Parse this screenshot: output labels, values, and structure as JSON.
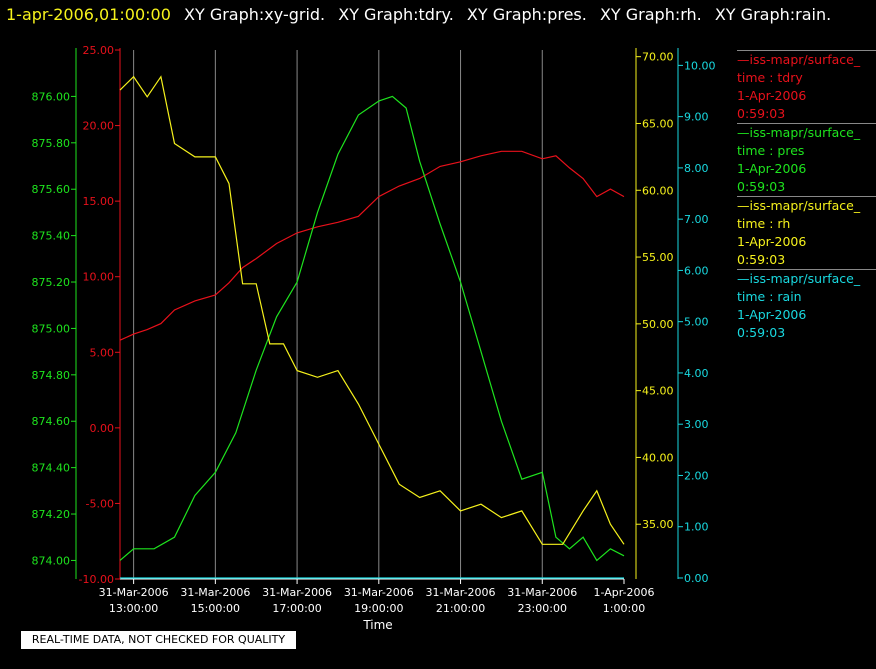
{
  "title": {
    "timestamp": "1-apr-2006,01:00:00",
    "graphs": [
      "XY Graph:xy-grid.",
      "XY Graph:tdry.",
      "XY Graph:pres.",
      "XY Graph:rh.",
      "XY Graph:rain."
    ]
  },
  "colors": {
    "background": "#000000",
    "grid": "#888888",
    "tdry": "#e8111b",
    "pres": "#1ee41e",
    "rh": "#f6f21c",
    "rain": "#19d9e0",
    "text": "#ffffff",
    "timestamp": "#f6f21c"
  },
  "legend": [
    {
      "series": "tdry",
      "source": "—iss-mapr/surface_",
      "label": "time : tdry",
      "date": "1-Apr-2006",
      "time": "0:59:03"
    },
    {
      "series": "pres",
      "source": "—iss-mapr/surface_",
      "label": "time : pres",
      "date": "1-Apr-2006",
      "time": "0:59:03"
    },
    {
      "series": "rh",
      "source": "—iss-mapr/surface_",
      "label": "time : rh",
      "date": "1-Apr-2006",
      "time": "0:59:03"
    },
    {
      "series": "rain",
      "source": "—iss-mapr/surface_",
      "label": "time : rain",
      "date": "1-Apr-2006",
      "time": "0:59:03"
    }
  ],
  "disclaimer": "REAL-TIME DATA, NOT CHECKED FOR QUALITY",
  "chart_data": {
    "type": "line",
    "xlabel": "Time",
    "x_ticks": [
      {
        "date": "31-Mar-2006",
        "time": "13:00:00"
      },
      {
        "date": "31-Mar-2006",
        "time": "15:00:00"
      },
      {
        "date": "31-Mar-2006",
        "time": "17:00:00"
      },
      {
        "date": "31-Mar-2006",
        "time": "19:00:00"
      },
      {
        "date": "31-Mar-2006",
        "time": "21:00:00"
      },
      {
        "date": "31-Mar-2006",
        "time": "23:00:00"
      },
      {
        "date": "1-Apr-2006",
        "time": "1:00:00"
      }
    ],
    "xlim": [
      "2006-03-31 12:40",
      "2006-04-01 01:00"
    ],
    "grid": true,
    "axes": {
      "tdry": {
        "ylim": [
          -10,
          25
        ],
        "ticks": [
          "25.00",
          "20.00",
          "15.00",
          "10.00",
          "5.00",
          "0.00",
          "-5.00",
          "-10.00"
        ]
      },
      "pres": {
        "ylim": [
          873.92,
          876.2
        ],
        "ticks": [
          "876.00",
          "875.80",
          "875.60",
          "875.40",
          "875.20",
          "875.00",
          "874.80",
          "874.60",
          "874.40",
          "874.20",
          "874.00"
        ]
      },
      "rh": {
        "ylim": [
          30.9,
          70.5
        ],
        "ticks": [
          "70.00",
          "65.00",
          "60.00",
          "55.00",
          "50.00",
          "45.00",
          "40.00",
          "35.00"
        ]
      },
      "rain": {
        "ylim": [
          -0.02,
          10.3
        ],
        "ticks": [
          "10.00",
          "9.00",
          "8.00",
          "7.00",
          "6.00",
          "5.00",
          "4.00",
          "3.00",
          "2.00",
          "1.00",
          "0.00"
        ]
      }
    },
    "series": [
      {
        "name": "tdry",
        "x": [
          "2006-03-31 12:40",
          "2006-03-31 13:00",
          "2006-03-31 13:20",
          "2006-03-31 13:40",
          "2006-03-31 14:00",
          "2006-03-31 14:30",
          "2006-03-31 15:00",
          "2006-03-31 15:20",
          "2006-03-31 15:40",
          "2006-03-31 16:00",
          "2006-03-31 16:30",
          "2006-03-31 17:00",
          "2006-03-31 17:30",
          "2006-03-31 18:00",
          "2006-03-31 18:30",
          "2006-03-31 19:00",
          "2006-03-31 19:30",
          "2006-03-31 20:00",
          "2006-03-31 20:30",
          "2006-03-31 21:00",
          "2006-03-31 21:30",
          "2006-03-31 22:00",
          "2006-03-31 22:30",
          "2006-03-31 23:00",
          "2006-03-31 23:20",
          "2006-03-31 23:40",
          "2006-04-01 00:00",
          "2006-04-01 00:20",
          "2006-04-01 00:40",
          "2006-04-01 01:00"
        ],
        "values": [
          5.8,
          6.2,
          6.5,
          6.9,
          7.8,
          8.4,
          8.8,
          9.6,
          10.6,
          11.2,
          12.2,
          12.9,
          13.3,
          13.6,
          14.0,
          15.3,
          16.0,
          16.5,
          17.3,
          17.6,
          18.0,
          18.3,
          18.3,
          17.8,
          18.0,
          17.2,
          16.5,
          15.3,
          15.8,
          15.3
        ]
      },
      {
        "name": "pres",
        "x": [
          "2006-03-31 12:40",
          "2006-03-31 13:00",
          "2006-03-31 13:30",
          "2006-03-31 14:00",
          "2006-03-31 14:30",
          "2006-03-31 15:00",
          "2006-03-31 15:30",
          "2006-03-31 16:00",
          "2006-03-31 16:30",
          "2006-03-31 17:00",
          "2006-03-31 17:30",
          "2006-03-31 18:00",
          "2006-03-31 18:30",
          "2006-03-31 19:00",
          "2006-03-31 19:20",
          "2006-03-31 19:40",
          "2006-03-31 20:00",
          "2006-03-31 20:30",
          "2006-03-31 21:00",
          "2006-03-31 21:30",
          "2006-03-31 22:00",
          "2006-03-31 22:30",
          "2006-03-31 23:00",
          "2006-03-31 23:20",
          "2006-03-31 23:40",
          "2006-04-01 00:00",
          "2006-04-01 00:20",
          "2006-04-01 00:40",
          "2006-04-01 01:00"
        ],
        "values": [
          874.0,
          874.05,
          874.05,
          874.1,
          874.28,
          874.38,
          874.55,
          874.82,
          875.05,
          875.2,
          875.5,
          875.75,
          875.92,
          875.98,
          876.0,
          875.95,
          875.72,
          875.45,
          875.2,
          874.9,
          874.6,
          874.35,
          874.38,
          874.1,
          874.05,
          874.1,
          874.0,
          874.05,
          874.02
        ]
      },
      {
        "name": "rh",
        "x": [
          "2006-03-31 12:40",
          "2006-03-31 13:00",
          "2006-03-31 13:20",
          "2006-03-31 13:40",
          "2006-03-31 14:00",
          "2006-03-31 14:30",
          "2006-03-31 15:00",
          "2006-03-31 15:20",
          "2006-03-31 15:40",
          "2006-03-31 16:00",
          "2006-03-31 16:20",
          "2006-03-31 16:40",
          "2006-03-31 17:00",
          "2006-03-31 17:30",
          "2006-03-31 18:00",
          "2006-03-31 18:30",
          "2006-03-31 19:00",
          "2006-03-31 19:30",
          "2006-03-31 20:00",
          "2006-03-31 20:30",
          "2006-03-31 21:00",
          "2006-03-31 21:30",
          "2006-03-31 22:00",
          "2006-03-31 22:30",
          "2006-03-31 23:00",
          "2006-03-31 23:30",
          "2006-04-01 00:00",
          "2006-04-01 00:20",
          "2006-04-01 00:40",
          "2006-04-01 01:00"
        ],
        "values": [
          67.5,
          68.5,
          67.0,
          68.5,
          63.5,
          62.5,
          62.5,
          60.5,
          53.0,
          53.0,
          48.5,
          48.5,
          46.5,
          46.0,
          46.5,
          44.0,
          41.0,
          38.0,
          37.0,
          37.5,
          36.0,
          36.5,
          35.5,
          36.0,
          33.5,
          33.5,
          36.0,
          37.5,
          35.0,
          33.5
        ]
      },
      {
        "name": "rain",
        "x": [
          "2006-03-31 12:40",
          "2006-04-01 01:00"
        ],
        "values": [
          0.0,
          0.0
        ]
      }
    ]
  }
}
